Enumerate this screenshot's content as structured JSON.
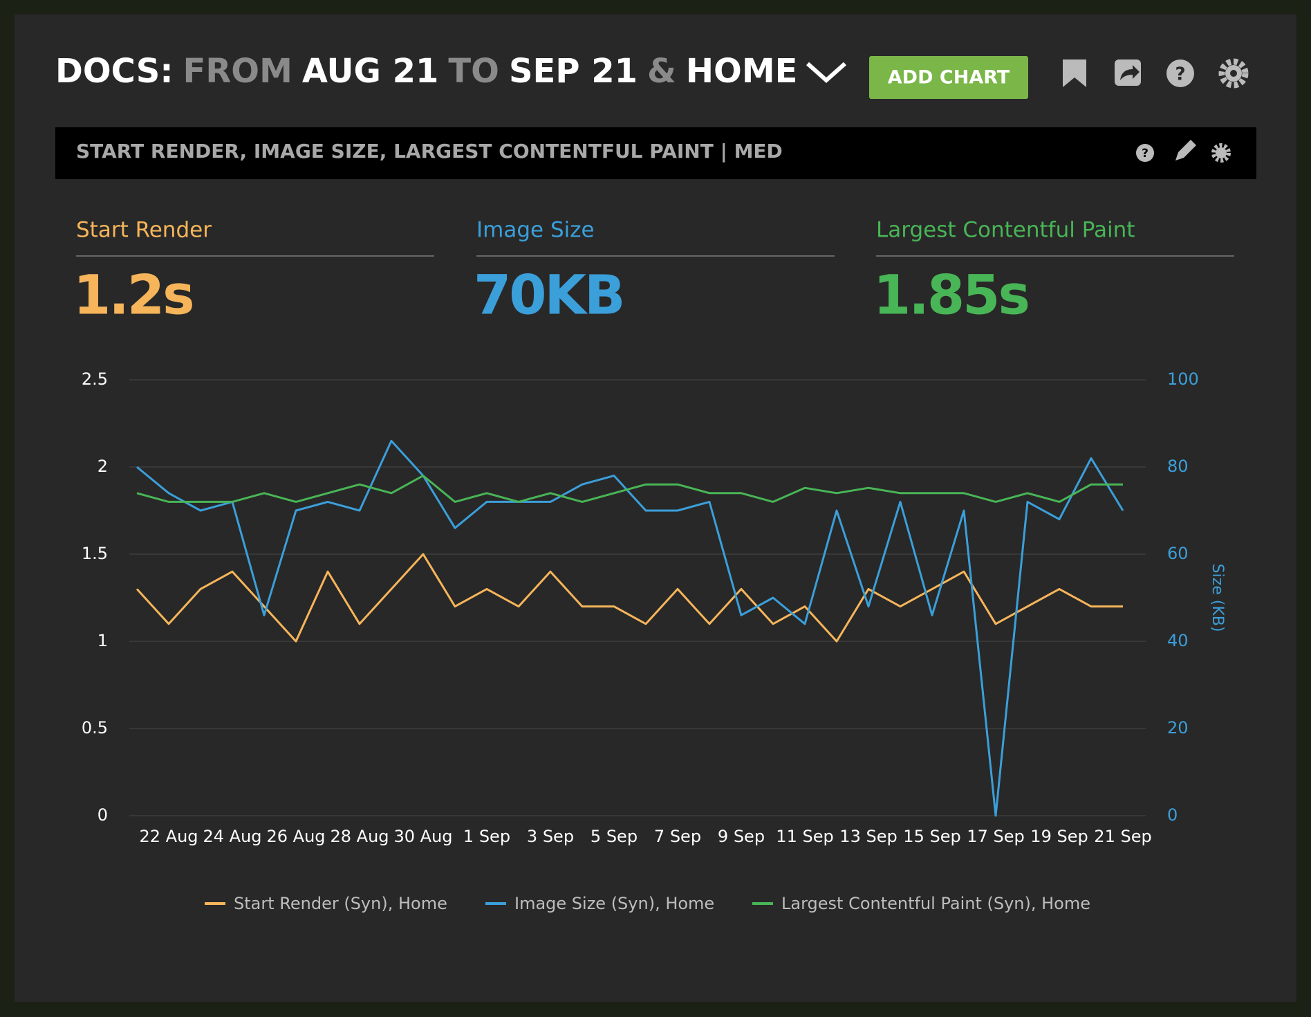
{
  "header": {
    "title_parts": [
      "DOCS:",
      "FROM",
      "AUG 21",
      "TO",
      "SEP 21",
      "&",
      "HOME"
    ],
    "button": "ADD CHART"
  },
  "panel": {
    "title": "START RENDER, IMAGE SIZE, LARGEST CONTENTFUL PAINT | MED"
  },
  "metrics": [
    {
      "label": "Start Render",
      "value": "1.2s"
    },
    {
      "label": "Image Size",
      "value": "70KB"
    },
    {
      "label": "Largest Contentful Paint",
      "value": "1.85s"
    }
  ],
  "chart_data": {
    "type": "line",
    "categories": [
      null,
      "22 Aug",
      null,
      "24 Aug",
      null,
      "26 Aug",
      null,
      "28 Aug",
      null,
      "30 Aug",
      null,
      "1 Sep",
      null,
      "3 Sep",
      null,
      "5 Sep",
      null,
      "7 Sep",
      null,
      "9 Sep",
      null,
      "11 Sep",
      null,
      "13 Sep",
      null,
      "15 Sep",
      null,
      "17 Sep",
      null,
      "19 Sep",
      null,
      "21 Sep"
    ],
    "series": [
      {
        "name": "Start Render (Syn), Home",
        "color": "#f6b55a",
        "values": [
          1.3,
          1.1,
          1.3,
          1.4,
          1.2,
          1.0,
          1.4,
          1.1,
          1.3,
          1.5,
          1.2,
          1.3,
          1.2,
          1.4,
          1.2,
          1.2,
          1.1,
          1.3,
          1.1,
          1.3,
          1.1,
          1.2,
          1.0,
          1.3,
          1.2,
          1.3,
          1.4,
          1.1,
          1.2,
          1.3,
          1.2,
          1.2
        ]
      },
      {
        "name": "Image Size (Syn), Home",
        "color": "#3b9fda",
        "axis": "y2",
        "values": [
          80,
          74,
          70,
          72,
          46,
          70,
          72,
          70,
          86,
          78,
          66,
          72,
          72,
          72,
          76,
          78,
          70,
          70,
          72,
          46,
          50,
          44,
          70,
          48,
          72,
          46,
          70,
          0,
          72,
          68,
          82,
          70
        ]
      },
      {
        "name": "Largest Contentful Paint (Syn), Home",
        "color": "#48b556",
        "values": [
          1.85,
          1.8,
          1.8,
          1.8,
          1.85,
          1.8,
          1.85,
          1.9,
          1.85,
          1.95,
          1.8,
          1.85,
          1.8,
          1.85,
          1.8,
          1.85,
          1.9,
          1.9,
          1.85,
          1.85,
          1.8,
          1.88,
          1.85,
          1.88,
          1.85,
          1.85,
          1.85,
          1.8,
          1.85,
          1.8,
          1.9,
          1.9
        ]
      }
    ],
    "ylim": [
      0,
      2.5
    ],
    "yticks": [
      0,
      0.5,
      1,
      1.5,
      2,
      2.5
    ],
    "y2lim": [
      0,
      100
    ],
    "y2ticks": [
      0,
      20,
      40,
      60,
      80,
      100
    ],
    "y2label": "Size (KB)",
    "grid": true
  }
}
